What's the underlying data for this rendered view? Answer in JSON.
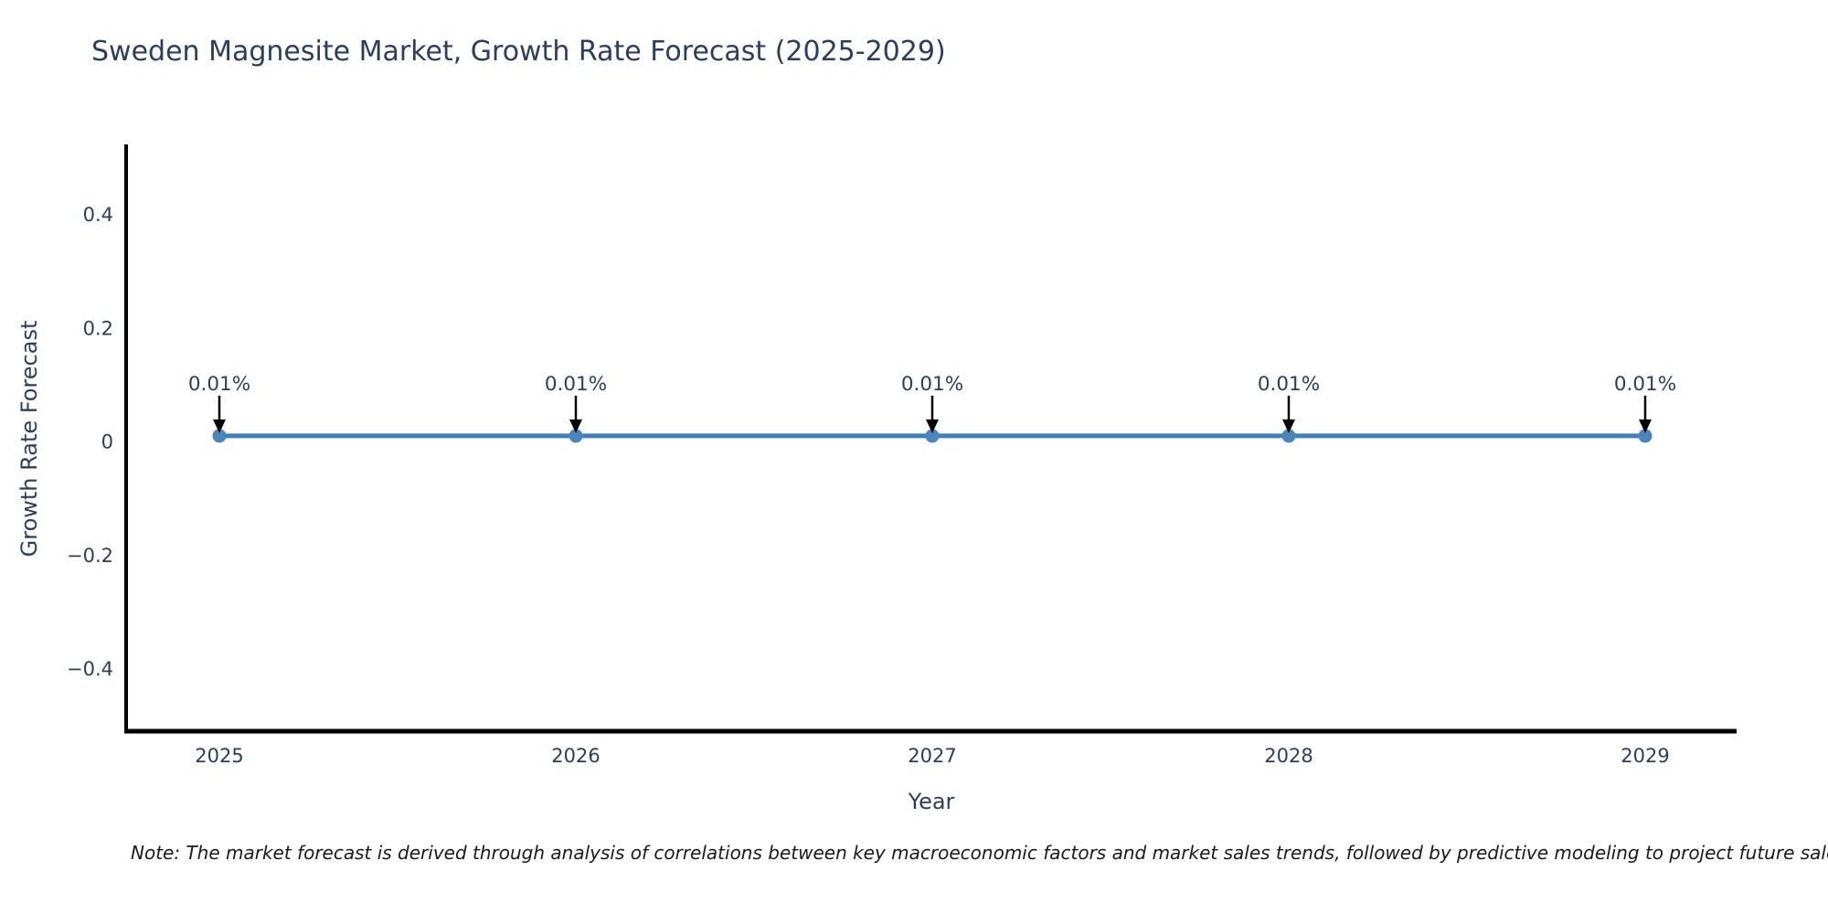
{
  "note": "Note: The market forecast is derived through analysis of correlations between key macroeconomic factors and market sales trends, followed by predictive modeling to project future sales.",
  "chart_data": {
    "type": "line",
    "title": "Sweden Magnesite Market, Growth Rate Forecast (2025-2029)",
    "xlabel": "Year",
    "ylabel": "Growth Rate Forecast",
    "x": [
      "2025",
      "2026",
      "2027",
      "2028",
      "2029"
    ],
    "series": [
      {
        "name": "Growth Rate Forecast",
        "values": [
          0.01,
          0.01,
          0.01,
          0.01,
          0.01
        ]
      }
    ],
    "point_labels": [
      "0.01%",
      "0.01%",
      "0.01%",
      "0.01%",
      "0.01%"
    ],
    "yticks": [
      0.4,
      0.2,
      0,
      -0.2,
      -0.4
    ],
    "ylim": [
      -0.51,
      0.52
    ],
    "grid": false,
    "legend_position": "none",
    "annotation_style": "down-arrow-to-point",
    "colors": {
      "line": "#3f7fbf",
      "marker": "#4a85bb",
      "axis": "#000000",
      "tick_label": "#2a3f5f",
      "title": "#2a3f5f",
      "annotation_text": "#2a3f5f",
      "arrow": "#000000",
      "note_text": "#1a1a1a",
      "background": "#ffffff"
    }
  }
}
